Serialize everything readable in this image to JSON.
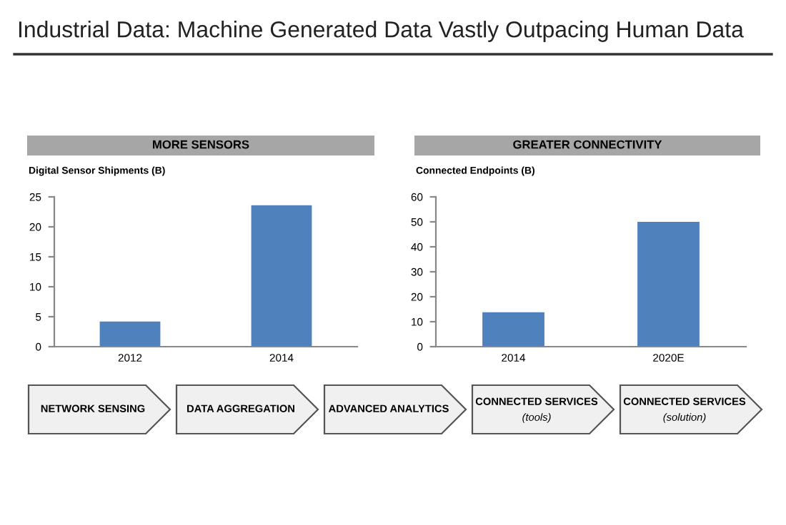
{
  "chart_data": [
    {
      "type": "other",
      "title": "Industrial Data: Machine Generated Data Vastly Outpacing Human Data"
    },
    {
      "type": "bar",
      "title": "MORE SENSORS",
      "ylabel": "Digital Sensor Shipments (B)",
      "categories": [
        "2012",
        "2014"
      ],
      "values": [
        4.2,
        23.6
      ],
      "color": "#4f81bd",
      "ylim": [
        0,
        25
      ],
      "yticks": [
        0,
        5,
        10,
        15,
        20,
        25
      ],
      "grid": false,
      "legend": false
    },
    {
      "type": "bar",
      "title": "GREATER CONNECTIVITY",
      "ylabel": "Connected Endpoints (B)",
      "categories": [
        "2014",
        "2020E"
      ],
      "values": [
        13.8,
        50
      ],
      "color": "#4f81bd",
      "ylim": [
        0,
        60
      ],
      "yticks": [
        0,
        10,
        20,
        30,
        40,
        50,
        60
      ],
      "grid": false,
      "legend": false
    },
    {
      "type": "other",
      "annotations": [
        "NETWORK SENSING",
        "DATA AGGREGATION",
        "ADVANCED ANALYTICS",
        "CONNECTED SERVICES\n(tools)",
        "CONNECTED SERVICES\n(solution)"
      ]
    }
  ]
}
